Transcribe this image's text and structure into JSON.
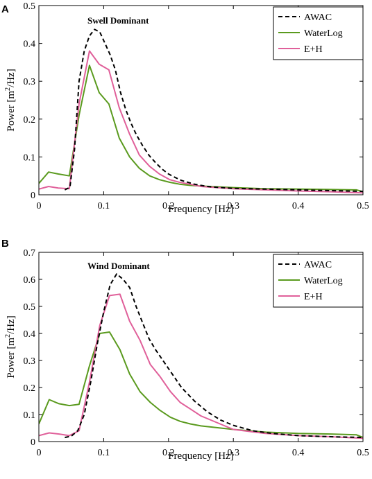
{
  "chart_data": [
    {
      "type": "line",
      "panel_label": "A",
      "annotation": "Swell Dominant",
      "xlabel": "Frequency [Hz]",
      "ylabel": "Power [m²/Hz]",
      "ylabel_base": "Power [m",
      "ylabel_sup": "2",
      "ylabel_rest": "/Hz]",
      "xlim": [
        0,
        0.5
      ],
      "ylim": [
        0,
        0.5
      ],
      "xticks": [
        0,
        0.1,
        0.2,
        0.3,
        0.4,
        0.5
      ],
      "yticks": [
        0,
        0.1,
        0.2,
        0.3,
        0.4,
        0.5
      ],
      "xtick_labels": [
        "0",
        "0.1",
        "0.2",
        "0.3",
        "0.4",
        "0.5"
      ],
      "ytick_labels": [
        "0",
        "0.1",
        "0.2",
        "0.3",
        "0.4",
        "0.5"
      ],
      "legend_position": "top-right",
      "grid": false,
      "series": [
        {
          "name": "AWAC",
          "color": "#000000",
          "dash": "dashed",
          "x": [
            0.04,
            0.048,
            0.055,
            0.062,
            0.07,
            0.078,
            0.086,
            0.094,
            0.102,
            0.11,
            0.118,
            0.126,
            0.134,
            0.142,
            0.15,
            0.16,
            0.17,
            0.18,
            0.19,
            0.2,
            0.21,
            0.22,
            0.24,
            0.26,
            0.28,
            0.3,
            0.35,
            0.4,
            0.45,
            0.5
          ],
          "y": [
            0.013,
            0.02,
            0.12,
            0.3,
            0.38,
            0.42,
            0.437,
            0.43,
            0.4,
            0.37,
            0.33,
            0.27,
            0.225,
            0.19,
            0.16,
            0.13,
            0.104,
            0.085,
            0.068,
            0.055,
            0.046,
            0.038,
            0.028,
            0.022,
            0.019,
            0.017,
            0.015,
            0.013,
            0.011,
            0.009
          ]
        },
        {
          "name": "WaterLog",
          "color": "#5a9a1e",
          "dash": "solid",
          "x": [
            0,
            0.015,
            0.03,
            0.047,
            0.062,
            0.078,
            0.093,
            0.108,
            0.124,
            0.14,
            0.155,
            0.171,
            0.186,
            0.202,
            0.217,
            0.233,
            0.25,
            0.3,
            0.35,
            0.4,
            0.45,
            0.49,
            0.5
          ],
          "y": [
            0.03,
            0.06,
            0.055,
            0.05,
            0.21,
            0.342,
            0.27,
            0.24,
            0.15,
            0.1,
            0.07,
            0.05,
            0.04,
            0.033,
            0.028,
            0.025,
            0.023,
            0.019,
            0.016,
            0.015,
            0.014,
            0.013,
            0.008
          ]
        },
        {
          "name": "E+H",
          "color": "#e0609a",
          "dash": "solid",
          "x": [
            0,
            0.015,
            0.03,
            0.047,
            0.062,
            0.078,
            0.093,
            0.108,
            0.124,
            0.14,
            0.155,
            0.171,
            0.186,
            0.202,
            0.217,
            0.233,
            0.25,
            0.3,
            0.35,
            0.4,
            0.45,
            0.5
          ],
          "y": [
            0.015,
            0.022,
            0.018,
            0.016,
            0.24,
            0.38,
            0.345,
            0.33,
            0.23,
            0.16,
            0.105,
            0.075,
            0.055,
            0.04,
            0.033,
            0.028,
            0.022,
            0.016,
            0.013,
            0.01,
            0.008,
            0.005
          ]
        }
      ]
    },
    {
      "type": "line",
      "panel_label": "B",
      "annotation": "Wind Dominant",
      "xlabel": "Frequency [Hz]",
      "ylabel": "Power [m²/Hz]",
      "ylabel_base": "Power [m",
      "ylabel_sup": "2",
      "ylabel_rest": "/Hz]",
      "xlim": [
        0,
        0.5
      ],
      "ylim": [
        0,
        0.7
      ],
      "xticks": [
        0,
        0.1,
        0.2,
        0.3,
        0.4,
        0.5
      ],
      "yticks": [
        0,
        0.1,
        0.2,
        0.3,
        0.4,
        0.5,
        0.6,
        0.7
      ],
      "xtick_labels": [
        "0",
        "0.1",
        "0.2",
        "0.3",
        "0.4",
        "0.5"
      ],
      "ytick_labels": [
        "0",
        "0.1",
        "0.2",
        "0.3",
        "0.4",
        "0.5",
        "0.6",
        "0.7"
      ],
      "legend_position": "top-right",
      "grid": false,
      "series": [
        {
          "name": "AWAC",
          "color": "#000000",
          "dash": "dashed",
          "x": [
            0.04,
            0.05,
            0.06,
            0.07,
            0.08,
            0.09,
            0.1,
            0.11,
            0.12,
            0.13,
            0.14,
            0.15,
            0.16,
            0.17,
            0.18,
            0.2,
            0.22,
            0.24,
            0.26,
            0.28,
            0.3,
            0.33,
            0.36,
            0.4,
            0.45,
            0.5
          ],
          "y": [
            0.015,
            0.02,
            0.04,
            0.1,
            0.22,
            0.36,
            0.48,
            0.58,
            0.62,
            0.6,
            0.57,
            0.5,
            0.44,
            0.38,
            0.34,
            0.27,
            0.2,
            0.15,
            0.11,
            0.08,
            0.06,
            0.04,
            0.03,
            0.022,
            0.018,
            0.015
          ]
        },
        {
          "name": "WaterLog",
          "color": "#5a9a1e",
          "dash": "solid",
          "x": [
            0,
            0.016,
            0.031,
            0.047,
            0.062,
            0.078,
            0.094,
            0.109,
            0.125,
            0.14,
            0.156,
            0.172,
            0.187,
            0.203,
            0.218,
            0.234,
            0.25,
            0.3,
            0.35,
            0.4,
            0.45,
            0.49,
            0.5
          ],
          "y": [
            0.065,
            0.155,
            0.14,
            0.133,
            0.138,
            0.28,
            0.4,
            0.405,
            0.34,
            0.25,
            0.185,
            0.145,
            0.115,
            0.09,
            0.075,
            0.065,
            0.058,
            0.045,
            0.035,
            0.03,
            0.028,
            0.025,
            0.015
          ]
        },
        {
          "name": "E+H",
          "color": "#e0609a",
          "dash": "solid",
          "x": [
            0,
            0.016,
            0.031,
            0.047,
            0.062,
            0.078,
            0.094,
            0.109,
            0.125,
            0.14,
            0.156,
            0.172,
            0.187,
            0.203,
            0.218,
            0.234,
            0.25,
            0.3,
            0.35,
            0.4,
            0.45,
            0.5
          ],
          "y": [
            0.022,
            0.032,
            0.028,
            0.022,
            0.04,
            0.22,
            0.43,
            0.54,
            0.545,
            0.445,
            0.375,
            0.285,
            0.24,
            0.185,
            0.145,
            0.12,
            0.095,
            0.045,
            0.03,
            0.022,
            0.018,
            0.012
          ]
        }
      ]
    }
  ]
}
